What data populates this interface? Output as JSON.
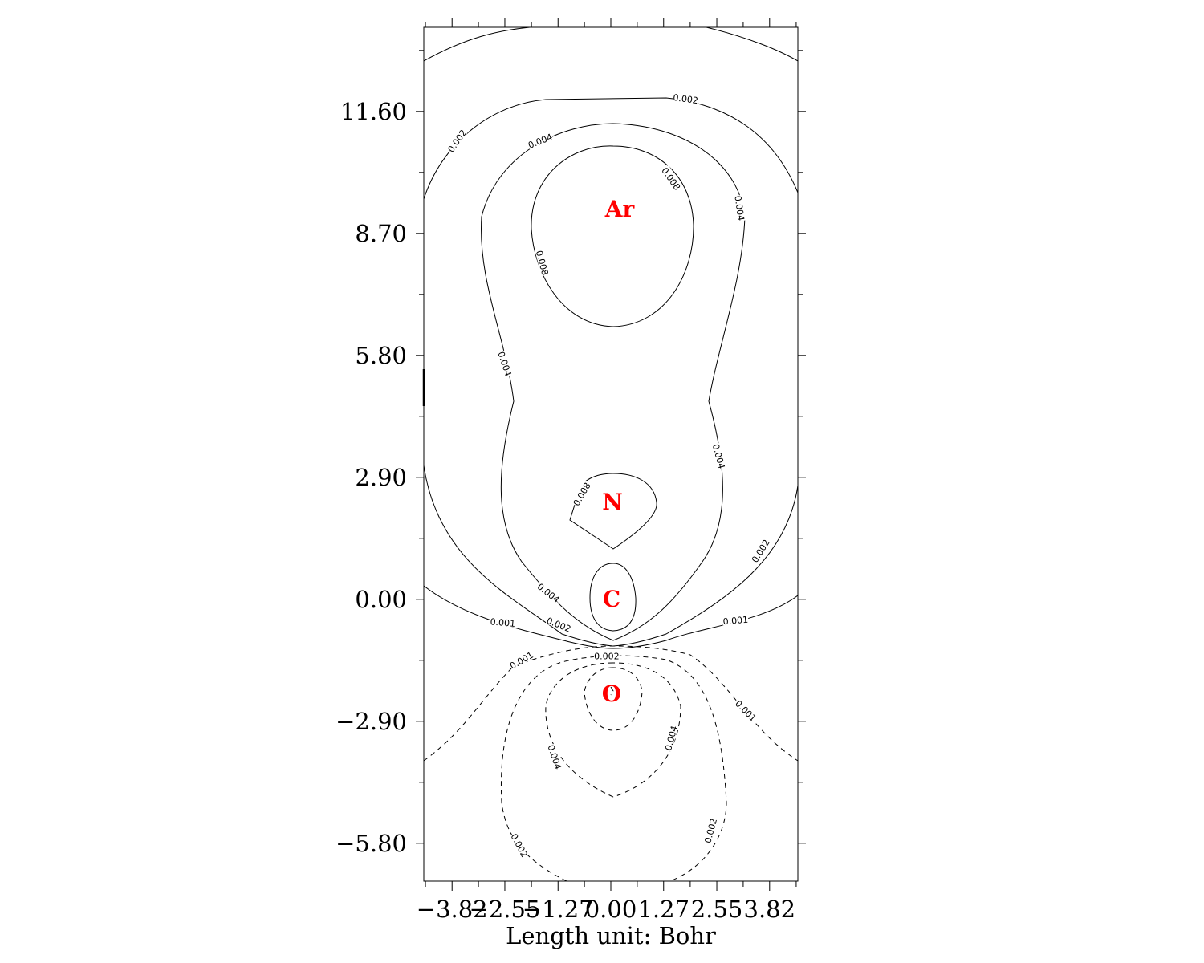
{
  "chart_data": {
    "type": "contour",
    "title": "",
    "xlabel": "Length unit: Bohr",
    "ylabel": "",
    "xlim": [
      -4.5,
      4.5
    ],
    "ylim": [
      -6.7,
      13.6
    ],
    "x_ticks": [
      "−3.82",
      "−2.55",
      "−1.27",
      "0.00",
      "1.27",
      "2.55",
      "3.82"
    ],
    "x_tick_values": [
      -3.82,
      -2.55,
      -1.27,
      0.0,
      1.27,
      2.55,
      3.82
    ],
    "y_ticks": [
      "11.60",
      "8.70",
      "5.80",
      "2.90",
      "0.00",
      "−2.90",
      "−5.80"
    ],
    "y_tick_values": [
      11.6,
      8.7,
      5.8,
      2.9,
      0.0,
      -2.9,
      -5.8
    ],
    "atoms": [
      {
        "label": "Ar",
        "x": 0.15,
        "y": 9.3
      },
      {
        "label": "N",
        "x": 0.0,
        "y": 2.3
      },
      {
        "label": "C",
        "x": 0.0,
        "y": 0.0
      },
      {
        "label": "O",
        "x": 0.0,
        "y": -2.25
      }
    ],
    "contour_levels": {
      "positive_solid": [
        0.001,
        0.002,
        0.004,
        0.008
      ],
      "negative_dashed": [
        0.001,
        0.002,
        0.004
      ]
    },
    "contour_labels": [
      {
        "text": "0.002",
        "x": 1.8,
        "y": 11.9,
        "rot": 8
      },
      {
        "text": "0.002",
        "x": -3.7,
        "y": 10.9,
        "rot": -55
      },
      {
        "text": "0.004",
        "x": -1.7,
        "y": 10.9,
        "rot": -22
      },
      {
        "text": "0.008",
        "x": 1.45,
        "y": 10.0,
        "rot": 55
      },
      {
        "text": "0.004",
        "x": 3.1,
        "y": 9.3,
        "rot": 82
      },
      {
        "text": "0.008",
        "x": -1.65,
        "y": 8.0,
        "rot": 75
      },
      {
        "text": "0.004",
        "x": -2.55,
        "y": 5.6,
        "rot": 72
      },
      {
        "text": "0.004",
        "x": 2.6,
        "y": 3.4,
        "rot": 75
      },
      {
        "text": "0.008",
        "x": -0.7,
        "y": 2.5,
        "rot": -60
      },
      {
        "text": "0.002",
        "x": 3.6,
        "y": 1.15,
        "rot": -58
      },
      {
        "text": "0.004",
        "x": -1.5,
        "y": 0.15,
        "rot": 38
      },
      {
        "text": "0.001",
        "x": -2.6,
        "y": -0.55,
        "rot": 5
      },
      {
        "text": "0.002",
        "x": -1.25,
        "y": -0.6,
        "rot": 22
      },
      {
        "text": "0.001",
        "x": 3.0,
        "y": -0.5,
        "rot": -5
      },
      {
        "text": "0.001",
        "x": -2.15,
        "y": -1.45,
        "rot": -30
      },
      {
        "text": "0.002",
        "x": -0.1,
        "y": -1.35,
        "rot": 0
      },
      {
        "text": "0.001",
        "x": 3.25,
        "y": -2.65,
        "rot": 45
      },
      {
        "text": "0.004",
        "x": 1.45,
        "y": -3.3,
        "rot": -75
      },
      {
        "text": "0.004",
        "x": -1.35,
        "y": -3.75,
        "rot": 72
      },
      {
        "text": "0.002",
        "x": 2.4,
        "y": -5.5,
        "rot": -75
      },
      {
        "text": "0.002",
        "x": -2.2,
        "y": -5.85,
        "rot": 62
      }
    ]
  }
}
